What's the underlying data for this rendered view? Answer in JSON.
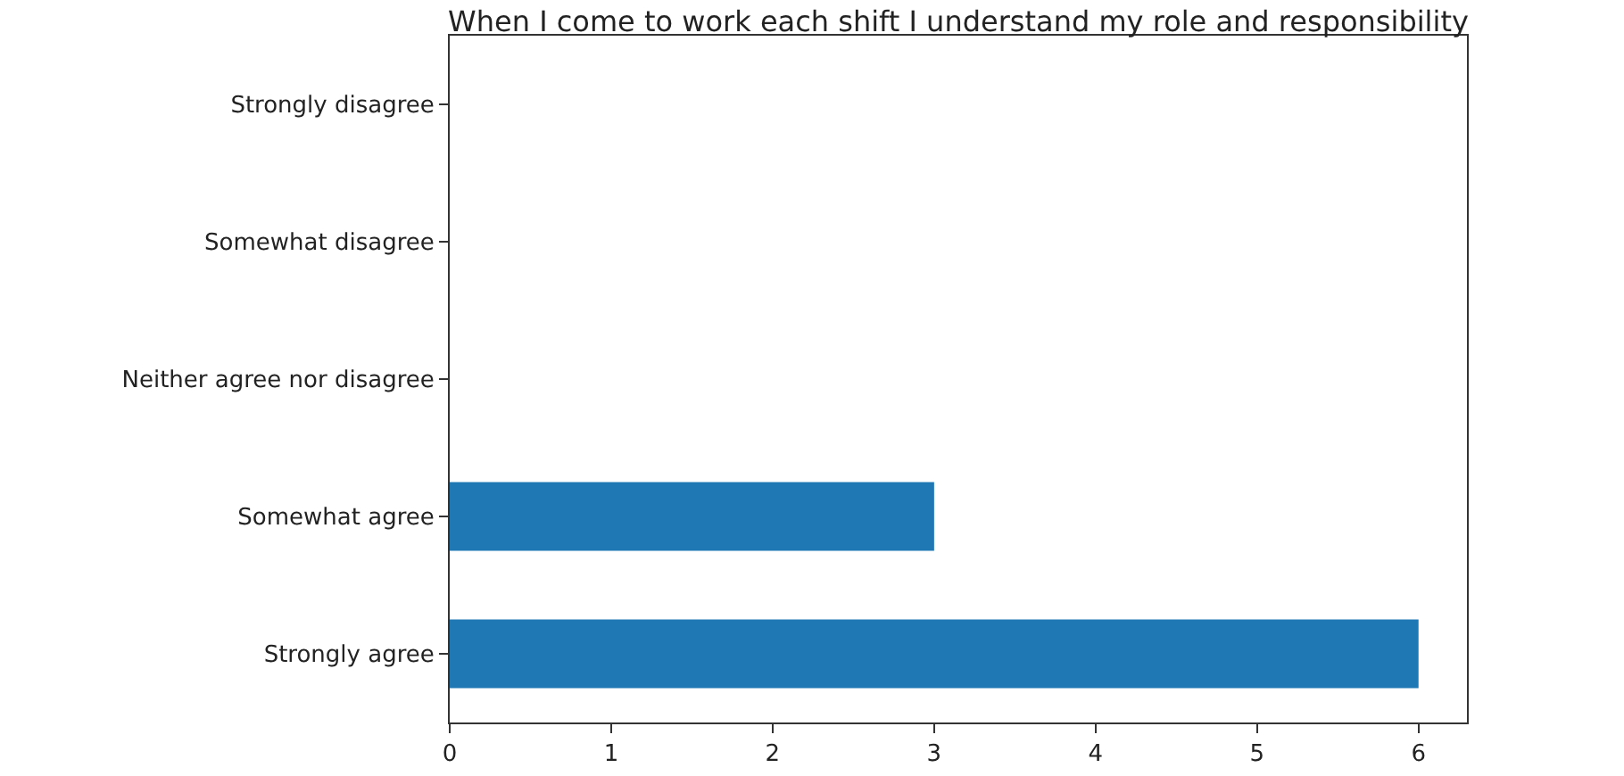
{
  "chart_data": {
    "type": "bar",
    "orientation": "horizontal",
    "title": "When I come to work each shift I understand my role and responsibility",
    "categories": [
      "Strongly disagree",
      "Somewhat disagree",
      "Neither agree nor disagree",
      "Somewhat agree",
      "Strongly agree"
    ],
    "values": [
      0,
      0,
      0,
      3,
      6
    ],
    "color": "#1f77b4",
    "xlim": [
      0,
      6.3
    ],
    "xticks": [
      0,
      1,
      2,
      3,
      4,
      5,
      6
    ],
    "grid": false
  }
}
